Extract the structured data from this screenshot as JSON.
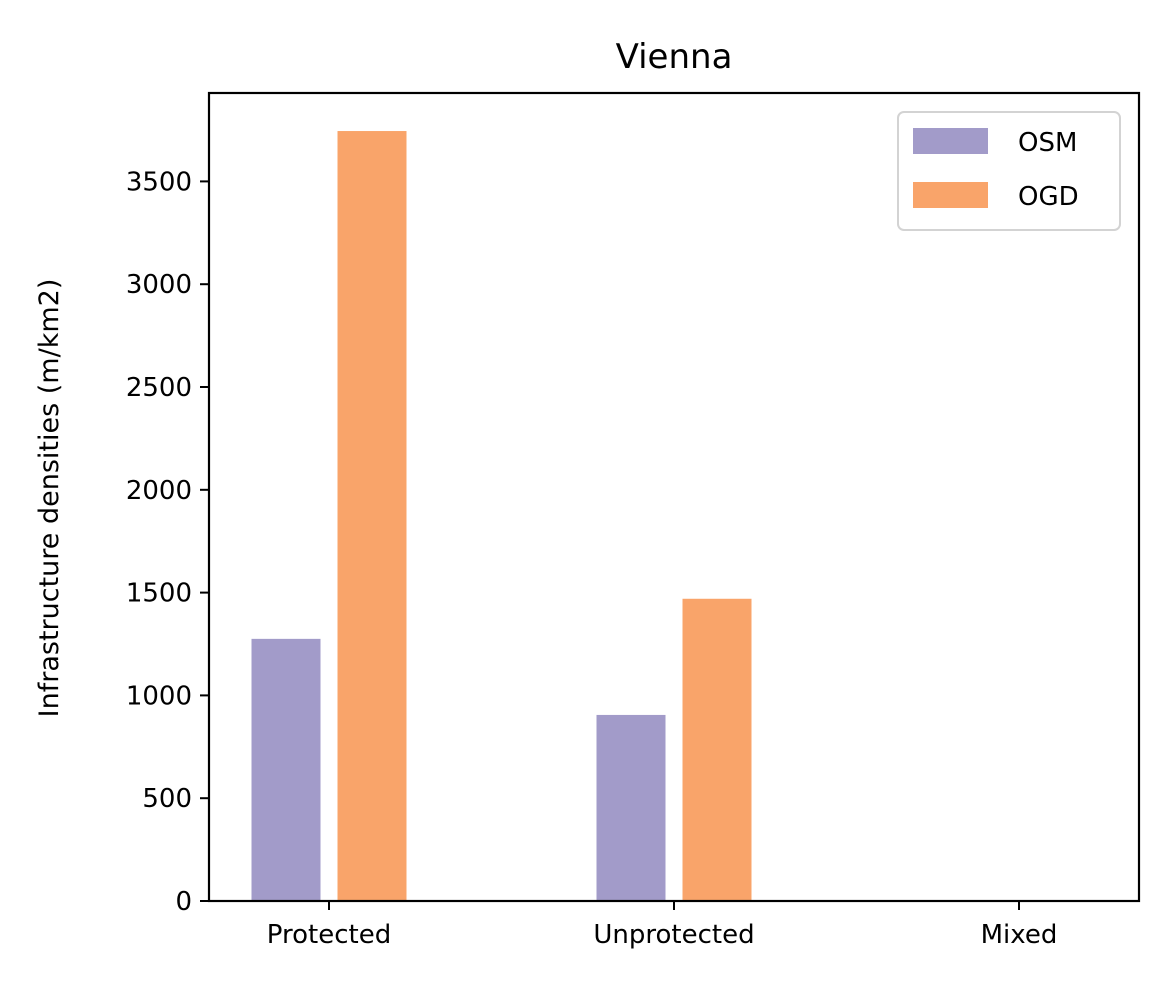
{
  "chart_data": {
    "type": "bar",
    "title": "Vienna",
    "xlabel": "",
    "ylabel": "Infrastructure densities (m/km2)",
    "categories": [
      "Protected",
      "Unprotected",
      "Mixed"
    ],
    "series": [
      {
        "name": "OSM",
        "color": "#a29bc9",
        "values": [
          1275,
          905,
          3
        ]
      },
      {
        "name": "OGD",
        "color": "#f9a46a",
        "values": [
          3745,
          1470,
          0
        ]
      }
    ],
    "ylim": [
      0,
      3930
    ],
    "yticks": [
      0,
      500,
      1000,
      1500,
      2000,
      2500,
      3000,
      3500
    ],
    "grid": false,
    "legend": "top-right"
  }
}
